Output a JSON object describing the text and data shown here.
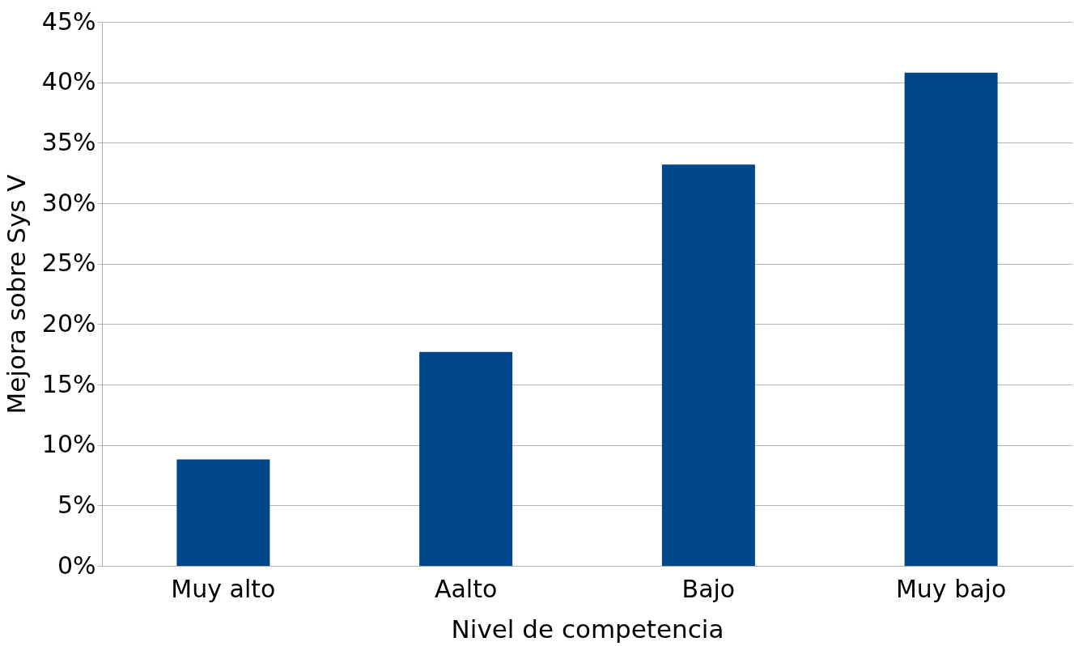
{
  "chart_data": {
    "type": "bar",
    "xlabel": "Nivel de competencia",
    "ylabel": "Mejora sobre Sys V",
    "categories": [
      "Muy alto",
      "Aalto",
      "Bajo",
      "Muy bajo"
    ],
    "values": [
      8.8,
      17.7,
      33.2,
      40.8
    ],
    "color": "#00468a",
    "ylim": [
      0,
      45
    ],
    "yticks": [
      {
        "value": 0,
        "label": "0%"
      },
      {
        "value": 5,
        "label": "5%"
      },
      {
        "value": 10,
        "label": "10%"
      },
      {
        "value": 15,
        "label": "15%"
      },
      {
        "value": 20,
        "label": "20%"
      },
      {
        "value": 25,
        "label": "25%"
      },
      {
        "value": 30,
        "label": "30%"
      },
      {
        "value": 35,
        "label": "35%"
      },
      {
        "value": 40,
        "label": "40%"
      },
      {
        "value": 45,
        "label": "45%"
      }
    ],
    "grid": "y"
  }
}
